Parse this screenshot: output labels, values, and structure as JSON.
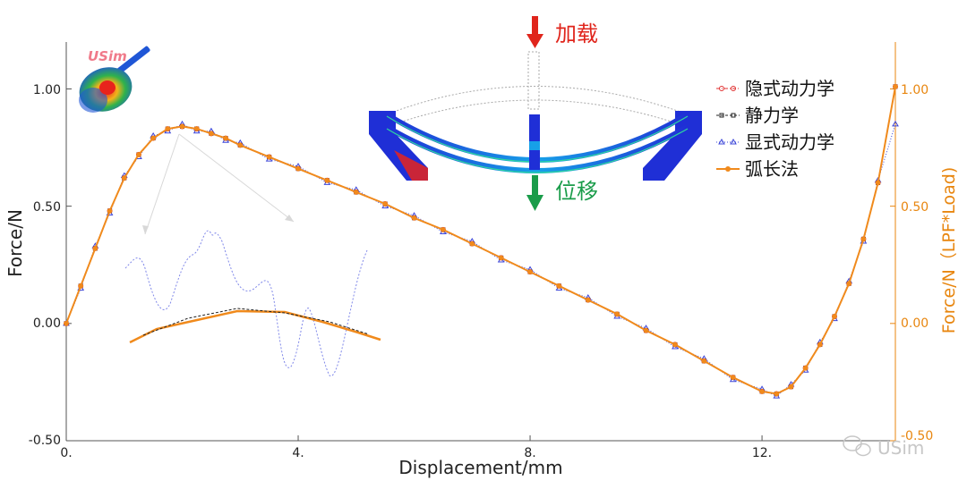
{
  "chart_data": {
    "type": "line",
    "xlabel": "Displacement/mm",
    "ylabel": "Force/N",
    "ylabel_right": "Force/N（LPF*Load)",
    "xlim": [
      0,
      14.3
    ],
    "ylim": [
      -0.5,
      1.2
    ],
    "x_ticks": [
      "0.",
      "4.",
      "8.",
      "12."
    ],
    "y_ticks": [
      "1.00",
      "0.50",
      "0.00",
      "-0.50"
    ],
    "y_ticks_right": [
      "1.00",
      "0.50",
      "0.00",
      "-0.50"
    ],
    "legend_placement": "top-right",
    "grid": false,
    "x": [
      0,
      0.25,
      0.5,
      0.75,
      1.0,
      1.25,
      1.5,
      1.75,
      2.0,
      2.25,
      2.5,
      2.75,
      3.0,
      3.5,
      4.0,
      4.5,
      5.0,
      5.5,
      6.0,
      6.5,
      7.0,
      7.5,
      8.0,
      8.5,
      9.0,
      9.5,
      10.0,
      10.5,
      11.0,
      11.5,
      12.0,
      12.25,
      12.5,
      12.75,
      13.0,
      13.25,
      13.5,
      13.75,
      14.0,
      14.3
    ],
    "series": [
      {
        "name": "隐式动力学",
        "color": "#e03030",
        "marker": "circle",
        "style": "dash-dot",
        "values": [
          0.0,
          0.16,
          0.32,
          0.48,
          0.62,
          0.72,
          0.79,
          0.83,
          0.84,
          0.83,
          0.81,
          0.79,
          0.76,
          0.71,
          0.66,
          0.61,
          0.56,
          0.51,
          0.45,
          0.4,
          0.34,
          0.28,
          0.22,
          0.16,
          0.1,
          0.04,
          -0.03,
          -0.09,
          -0.16,
          -0.23,
          -0.29,
          -0.3,
          -0.27,
          -0.19,
          -0.09,
          0.03,
          0.17,
          0.36,
          0.6,
          1.01
        ]
      },
      {
        "name": "静力学",
        "color": "#222222",
        "marker": "square",
        "style": "dash",
        "values": [
          0.0,
          0.16,
          0.32,
          0.48,
          0.62,
          0.72,
          0.79,
          0.83,
          0.84,
          0.83,
          0.81,
          0.79,
          0.76,
          0.71,
          0.66,
          0.61,
          0.56,
          0.51,
          0.45,
          0.4,
          0.34,
          0.28,
          0.22,
          0.16,
          0.1,
          0.04,
          -0.03,
          -0.09,
          -0.16,
          -0.23,
          -0.29,
          -0.3,
          -0.27,
          -0.19,
          -0.09,
          0.03,
          0.17,
          0.36,
          0.6,
          1.01
        ]
      },
      {
        "name": "显式动力学",
        "color": "#3b45d8",
        "marker": "triangle",
        "style": "dot",
        "values": [
          0.0,
          0.15,
          0.33,
          0.47,
          0.63,
          0.71,
          0.8,
          0.82,
          0.85,
          0.82,
          0.82,
          0.78,
          0.77,
          0.7,
          0.67,
          0.6,
          0.57,
          0.5,
          0.46,
          0.39,
          0.35,
          0.27,
          0.23,
          0.15,
          0.11,
          0.03,
          -0.02,
          -0.1,
          -0.15,
          -0.24,
          -0.28,
          -0.31,
          -0.26,
          -0.2,
          -0.08,
          0.02,
          0.18,
          0.35,
          0.61,
          0.85
        ]
      },
      {
        "name": "弧长法",
        "color": "#f08a1c",
        "marker": "dot",
        "style": "solid",
        "values": [
          0.0,
          0.16,
          0.32,
          0.48,
          0.62,
          0.72,
          0.79,
          0.83,
          0.84,
          0.83,
          0.81,
          0.79,
          0.76,
          0.71,
          0.66,
          0.61,
          0.56,
          0.51,
          0.45,
          0.4,
          0.34,
          0.28,
          0.22,
          0.16,
          0.1,
          0.04,
          -0.03,
          -0.09,
          -0.16,
          -0.23,
          -0.29,
          -0.3,
          -0.27,
          -0.19,
          -0.09,
          0.03,
          0.17,
          0.36,
          0.6,
          1.01
        ]
      }
    ]
  },
  "diagram": {
    "load_label": "加载",
    "displacement_label": "位移"
  },
  "logo": {
    "text": "USim"
  },
  "watermark": {
    "text": "USim"
  },
  "colors": {
    "axis": "#444444",
    "right_axis": "#e8860f",
    "arrow_down": "#e0251c",
    "arrow_move": "#1a9c4a",
    "structure_blue": "#1f2fd6"
  }
}
